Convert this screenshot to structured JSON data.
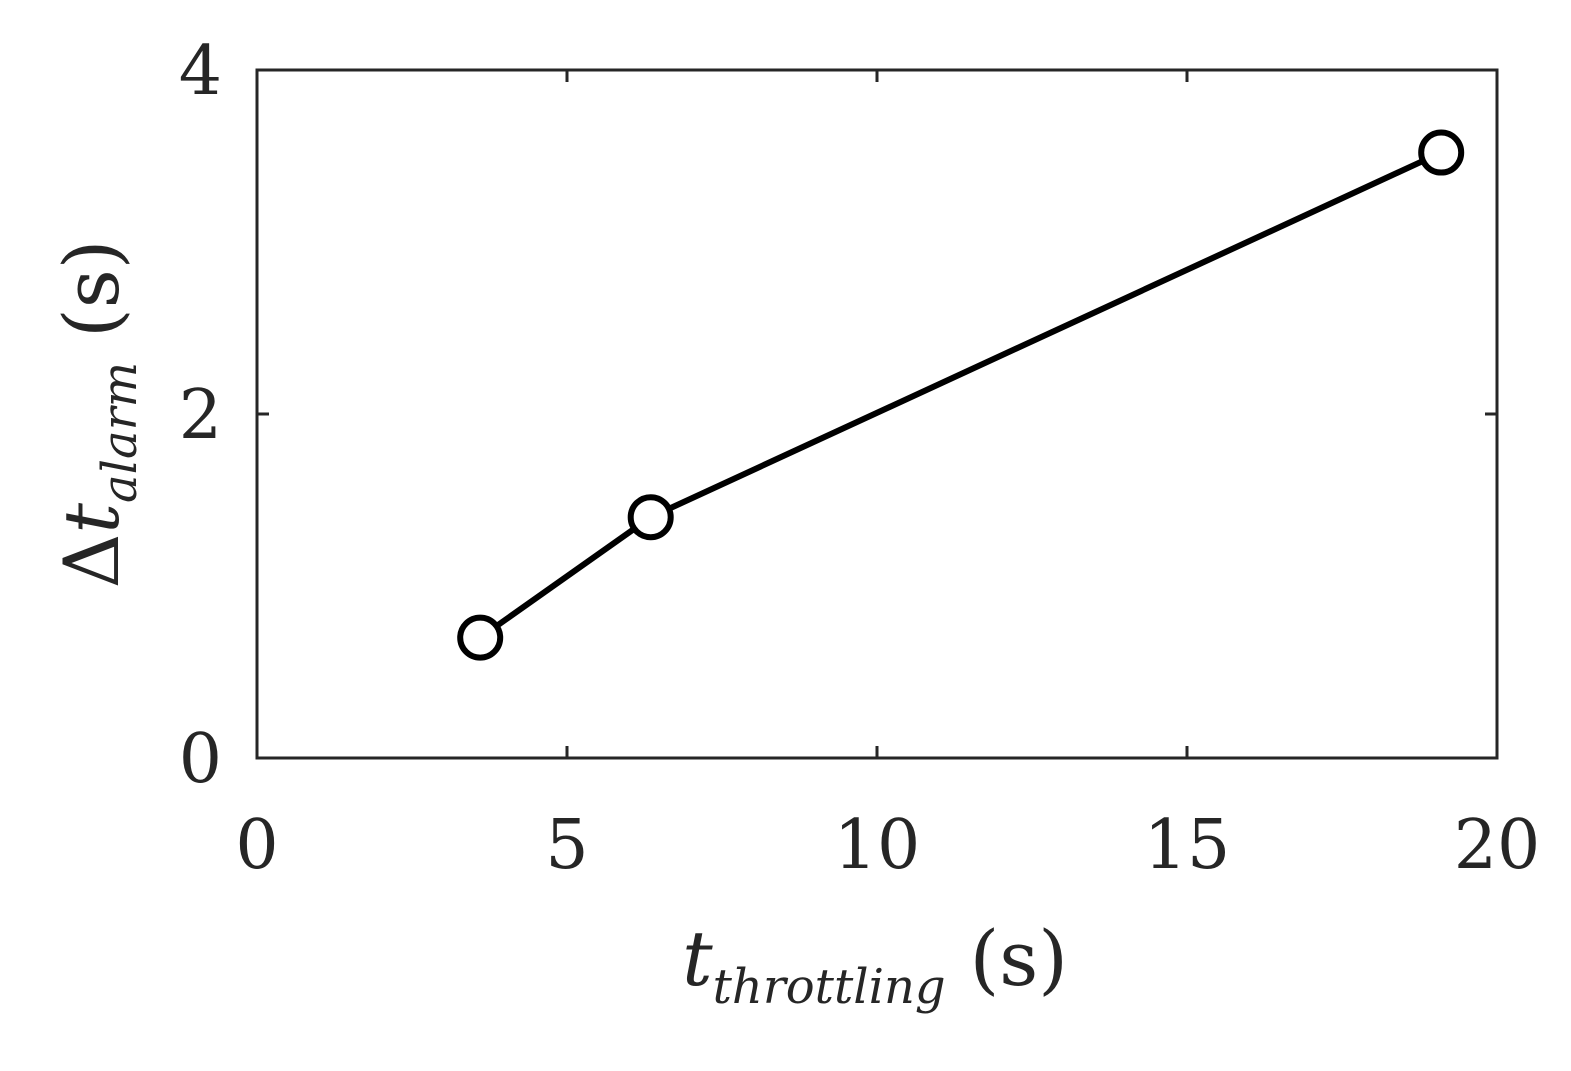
{
  "chart_data": {
    "type": "line",
    "title": "",
    "x_axis": {
      "label_symbol": "t",
      "label_subscript": "throttling",
      "label_unit": "(s)",
      "range": [
        0,
        20
      ],
      "ticks": [
        0,
        5,
        10,
        15,
        20
      ]
    },
    "y_axis": {
      "label_prefix": "Δ",
      "label_symbol": "t",
      "label_subscript": "alarm",
      "label_unit": "(s)",
      "range": [
        0,
        4
      ],
      "ticks": [
        0,
        2,
        4
      ]
    },
    "grid": false,
    "legend": "none",
    "series": [
      {
        "x": [
          3.6,
          6.35,
          19.1
        ],
        "y": [
          0.7,
          1.4,
          3.52
        ],
        "line_color": "#000000",
        "marker": "circle-open",
        "marker_fill": "#ffffff",
        "marker_edge": "#000000"
      }
    ],
    "colors": {
      "axes": "#262626",
      "line": "#000000",
      "background": "#ffffff"
    }
  }
}
